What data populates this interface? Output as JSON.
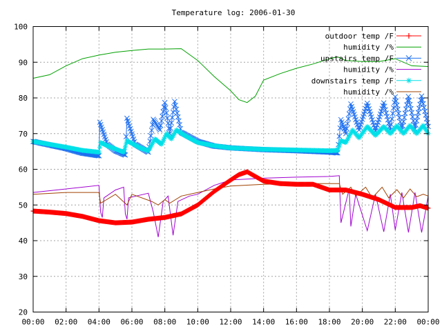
{
  "chart_data": {
    "type": "line",
    "title": "Temperature log: 2006-01-30",
    "xlabel": "",
    "ylabel": "",
    "xlim": [
      0,
      24
    ],
    "ylim": [
      20,
      100
    ],
    "x_ticks": [
      "00:00",
      "02:00",
      "04:00",
      "06:00",
      "08:00",
      "10:00",
      "12:00",
      "14:00",
      "16:00",
      "18:00",
      "20:00",
      "22:00",
      "00:00"
    ],
    "y_ticks": [
      20,
      30,
      40,
      50,
      60,
      70,
      80,
      90,
      100
    ],
    "grid": true,
    "legend_position": "top-right",
    "series": [
      {
        "name": "outdoor temp /F",
        "color": "#ff0000",
        "marker": "plus",
        "points": [
          [
            0,
            48.3
          ],
          [
            1,
            48
          ],
          [
            2,
            47.6
          ],
          [
            3,
            46.8
          ],
          [
            4,
            45.6
          ],
          [
            5,
            45
          ],
          [
            6,
            45.2
          ],
          [
            7,
            46
          ],
          [
            8,
            46.5
          ],
          [
            9,
            47.5
          ],
          [
            10,
            50
          ],
          [
            11,
            53.8
          ],
          [
            12,
            57
          ],
          [
            12.5,
            58.5
          ],
          [
            13,
            59.3
          ],
          [
            13.5,
            58
          ],
          [
            14,
            56.7
          ],
          [
            15,
            56
          ],
          [
            16,
            55.8
          ],
          [
            17,
            55.8
          ],
          [
            17.5,
            55
          ],
          [
            18,
            54.2
          ],
          [
            19,
            54.2
          ],
          [
            20,
            53
          ],
          [
            21,
            51.5
          ],
          [
            22,
            49.3
          ],
          [
            23,
            49.3
          ],
          [
            23.5,
            49.8
          ],
          [
            24,
            49.1
          ]
        ]
      },
      {
        "name": "humidity /%",
        "color": "#00a000",
        "marker": "none",
        "points": [
          [
            0,
            85.5
          ],
          [
            1,
            86.5
          ],
          [
            2,
            89
          ],
          [
            3,
            91
          ],
          [
            4,
            92
          ],
          [
            5,
            92.8
          ],
          [
            6,
            93.3
          ],
          [
            7,
            93.7
          ],
          [
            8,
            93.7
          ],
          [
            9,
            93.8
          ],
          [
            10,
            90.5
          ],
          [
            11,
            86
          ],
          [
            12,
            82
          ],
          [
            12.5,
            79.5
          ],
          [
            13,
            78.7
          ],
          [
            13.5,
            80.5
          ],
          [
            14,
            85
          ],
          [
            15,
            86.8
          ],
          [
            16,
            88.3
          ],
          [
            17,
            89.5
          ],
          [
            18,
            91
          ],
          [
            18.5,
            91.5
          ],
          [
            19,
            90.5
          ],
          [
            20,
            90.2
          ],
          [
            21,
            90.2
          ],
          [
            22,
            91
          ],
          [
            23,
            89
          ],
          [
            24,
            88.8
          ]
        ]
      },
      {
        "name": "upstairs temp /F",
        "color": "#1e6ff0",
        "marker": "x",
        "points": [
          [
            0,
            67.8
          ],
          [
            1,
            66.8
          ],
          [
            2,
            65.8
          ],
          [
            3,
            64.5
          ],
          [
            4,
            63.8
          ],
          [
            4.05,
            73.2
          ],
          [
            4.5,
            67
          ],
          [
            5,
            65.2
          ],
          [
            5.6,
            64
          ],
          [
            5.7,
            74.3
          ],
          [
            6.2,
            67
          ],
          [
            7,
            64.8
          ],
          [
            7.3,
            74
          ],
          [
            7.7,
            71
          ],
          [
            8,
            78.7
          ],
          [
            8.3,
            70
          ],
          [
            8.6,
            79
          ],
          [
            9,
            70.3
          ],
          [
            10,
            67.8
          ],
          [
            11,
            66.5
          ],
          [
            12,
            66
          ],
          [
            14,
            65.5
          ],
          [
            16,
            65.2
          ],
          [
            18,
            64.8
          ],
          [
            18.5,
            64.6
          ],
          [
            18.7,
            73.9
          ],
          [
            19,
            70
          ],
          [
            19.3,
            78.3
          ],
          [
            19.8,
            71
          ],
          [
            20.3,
            78.5
          ],
          [
            20.8,
            70.8
          ],
          [
            21.3,
            78.6
          ],
          [
            21.7,
            71
          ],
          [
            22,
            80.3
          ],
          [
            22.4,
            71
          ],
          [
            22.8,
            80.4
          ],
          [
            23.2,
            71.3
          ],
          [
            23.6,
            80.5
          ],
          [
            24,
            72
          ]
        ]
      },
      {
        "name": "humidity /%",
        "color": "#a000d0",
        "marker": "none",
        "points": [
          [
            0,
            53.5
          ],
          [
            2,
            54.5
          ],
          [
            4,
            55.5
          ],
          [
            4.1,
            48
          ],
          [
            4.2,
            46.5
          ],
          [
            4.3,
            52
          ],
          [
            5,
            54.2
          ],
          [
            5.5,
            55
          ],
          [
            5.6,
            47.5
          ],
          [
            5.7,
            46
          ],
          [
            5.8,
            52
          ],
          [
            7,
            53.3
          ],
          [
            7.3,
            48
          ],
          [
            7.6,
            41
          ],
          [
            7.9,
            51
          ],
          [
            8.2,
            52.5
          ],
          [
            8.5,
            41.5
          ],
          [
            8.8,
            51
          ],
          [
            9.5,
            52.5
          ],
          [
            10,
            53
          ],
          [
            11,
            55.5
          ],
          [
            12,
            57
          ],
          [
            14,
            57.5
          ],
          [
            16,
            57.8
          ],
          [
            18,
            58
          ],
          [
            18.6,
            58.2
          ],
          [
            18.7,
            45
          ],
          [
            19.2,
            54.5
          ],
          [
            19.3,
            44
          ],
          [
            19.6,
            53
          ],
          [
            20.3,
            42.8
          ],
          [
            20.8,
            53
          ],
          [
            21.3,
            42.5
          ],
          [
            21.7,
            53
          ],
          [
            22,
            43
          ],
          [
            22.4,
            53.5
          ],
          [
            22.8,
            42.3
          ],
          [
            23.2,
            53.5
          ],
          [
            23.6,
            42.3
          ],
          [
            24,
            52.5
          ]
        ]
      },
      {
        "name": "downstairs temp /F",
        "color": "#00e0e8",
        "marker": "star",
        "points": [
          [
            0,
            67.8
          ],
          [
            1,
            67
          ],
          [
            2,
            66.2
          ],
          [
            3,
            65.3
          ],
          [
            4,
            64.8
          ],
          [
            4.1,
            67.5
          ],
          [
            4.5,
            66.6
          ],
          [
            5.5,
            64.8
          ],
          [
            5.7,
            68
          ],
          [
            6.5,
            66
          ],
          [
            7,
            65.2
          ],
          [
            7.4,
            68.5
          ],
          [
            7.8,
            67
          ],
          [
            8.1,
            70
          ],
          [
            8.4,
            68.5
          ],
          [
            8.7,
            71
          ],
          [
            9.2,
            69.5
          ],
          [
            10,
            67.5
          ],
          [
            11,
            66.6
          ],
          [
            12,
            66
          ],
          [
            14,
            65.6
          ],
          [
            16,
            65.4
          ],
          [
            18,
            65.2
          ],
          [
            18.5,
            65.3
          ],
          [
            18.7,
            68
          ],
          [
            19,
            67.5
          ],
          [
            19.4,
            71
          ],
          [
            19.8,
            68.8
          ],
          [
            20.3,
            72
          ],
          [
            20.8,
            69.5
          ],
          [
            21.3,
            72
          ],
          [
            21.7,
            70
          ],
          [
            22.1,
            72.2
          ],
          [
            22.5,
            70
          ],
          [
            22.9,
            72.3
          ],
          [
            23.3,
            70
          ],
          [
            23.7,
            72.3
          ],
          [
            24,
            70
          ]
        ]
      },
      {
        "name": "humidity /%",
        "color": "#a04000",
        "marker": "none",
        "points": [
          [
            0,
            53
          ],
          [
            2,
            53.5
          ],
          [
            4,
            53.5
          ],
          [
            4.1,
            50.5
          ],
          [
            5,
            53
          ],
          [
            5.7,
            50
          ],
          [
            6,
            53
          ],
          [
            7.2,
            51
          ],
          [
            7.6,
            50
          ],
          [
            8,
            51.5
          ],
          [
            8.3,
            50.5
          ],
          [
            9,
            52.5
          ],
          [
            10,
            53.5
          ],
          [
            11,
            54.5
          ],
          [
            12,
            55.3
          ],
          [
            14,
            55.8
          ],
          [
            16,
            56
          ],
          [
            18,
            56
          ],
          [
            18.6,
            56
          ],
          [
            18.8,
            53
          ],
          [
            19.3,
            55
          ],
          [
            19.6,
            52.5
          ],
          [
            20.2,
            55
          ],
          [
            20.6,
            52
          ],
          [
            21.2,
            55
          ],
          [
            21.6,
            52
          ],
          [
            22.1,
            54.3
          ],
          [
            22.5,
            52
          ],
          [
            22.9,
            54.5
          ],
          [
            23.3,
            52.3
          ],
          [
            23.7,
            53
          ],
          [
            24,
            52.5
          ]
        ]
      }
    ]
  }
}
